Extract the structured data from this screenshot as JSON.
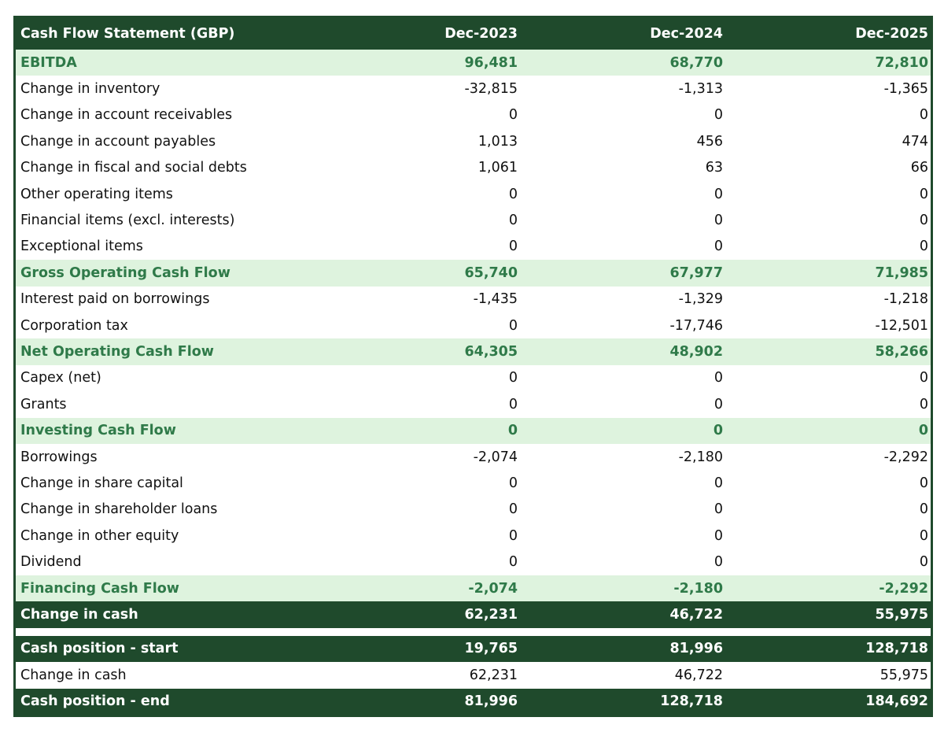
{
  "table": {
    "header": [
      "Cash Flow Statement (GBP)",
      "Dec-2023",
      "Dec-2024",
      "Dec-2025"
    ],
    "rows": [
      [
        "EBITDA",
        "96,481",
        "68,770",
        "72,810"
      ],
      [
        "Change in inventory",
        "-32,815",
        "-1,313",
        "-1,365"
      ],
      [
        "Change in account receivables",
        "0",
        "0",
        "0"
      ],
      [
        "Change in account payables",
        "1,013",
        "456",
        "474"
      ],
      [
        "Change in fiscal and social debts",
        "1,061",
        "63",
        "66"
      ],
      [
        "Other operating items",
        "0",
        "0",
        "0"
      ],
      [
        "Financial items (excl. interests)",
        "0",
        "0",
        "0"
      ],
      [
        "Exceptional items",
        "0",
        "0",
        "0"
      ],
      [
        "Gross Operating Cash Flow",
        "65,740",
        "67,977",
        "71,985"
      ],
      [
        "Interest paid on borrowings",
        "-1,435",
        "-1,329",
        "-1,218"
      ],
      [
        "Corporation tax",
        "0",
        "-17,746",
        "-12,501"
      ],
      [
        "Net Operating Cash Flow",
        "64,305",
        "48,902",
        "58,266"
      ],
      [
        "Capex (net)",
        "0",
        "0",
        "0"
      ],
      [
        "Grants",
        "0",
        "0",
        "0"
      ],
      [
        "Investing Cash Flow",
        "0",
        "0",
        "0"
      ],
      [
        "Borrowings",
        "-2,074",
        "-2,180",
        "-2,292"
      ],
      [
        "Change in share capital",
        "0",
        "0",
        "0"
      ],
      [
        "Change in shareholder loans",
        "0",
        "0",
        "0"
      ],
      [
        "Change in other equity",
        "0",
        "0",
        "0"
      ],
      [
        "Dividend",
        "0",
        "0",
        "0"
      ],
      [
        "Financing Cash Flow",
        "-2,074",
        "-2,180",
        "-2,292"
      ],
      [
        "Change in cash",
        "62,231",
        "46,722",
        "55,975"
      ],
      [
        "Cash position - start",
        "19,765",
        "81,996",
        "128,718"
      ],
      [
        "Change in cash",
        "62,231",
        "46,722",
        "55,975"
      ],
      [
        "Cash position - end",
        "81,996",
        "128,718",
        "184,692"
      ]
    ]
  }
}
